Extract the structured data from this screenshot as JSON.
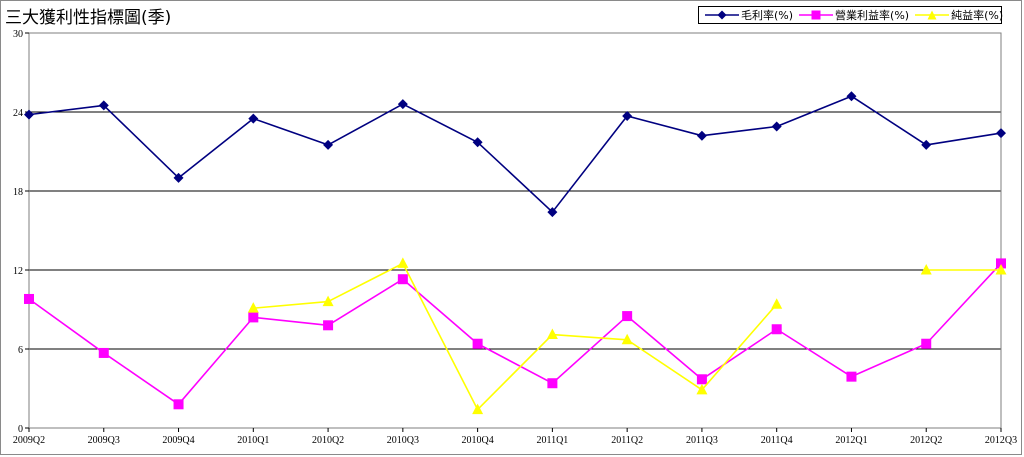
{
  "chart_data": {
    "type": "line",
    "title": "三大獲利性指標圖(季)",
    "xlabel": "",
    "ylabel": "",
    "categories": [
      "2009Q2",
      "2009Q3",
      "2009Q4",
      "2010Q1",
      "2010Q2",
      "2010Q3",
      "2010Q4",
      "2011Q1",
      "2011Q2",
      "2011Q3",
      "2011Q4",
      "2012Q1",
      "2012Q2",
      "2012Q3"
    ],
    "ylim": [
      0,
      30
    ],
    "yticks": [
      0,
      6,
      12,
      18,
      24,
      30
    ],
    "grid": "horizontal",
    "legend_position": "top-right",
    "series": [
      {
        "name": "毛利率(%)",
        "color": "#000080",
        "marker": "diamond",
        "values": [
          23.8,
          24.5,
          19.0,
          23.5,
          21.5,
          24.6,
          21.7,
          16.4,
          23.7,
          22.2,
          22.9,
          25.2,
          21.5,
          22.4
        ]
      },
      {
        "name": "營業利益率(%)",
        "color": "#ff00ff",
        "marker": "square",
        "values": [
          9.8,
          5.7,
          1.8,
          8.4,
          7.8,
          11.3,
          6.4,
          3.4,
          8.5,
          3.7,
          7.5,
          3.9,
          6.4,
          12.5
        ]
      },
      {
        "name": "純益率(%)",
        "color": "#ffff00",
        "marker": "triangle",
        "values": [
          null,
          null,
          null,
          9.1,
          9.6,
          12.5,
          1.4,
          7.1,
          6.7,
          2.9,
          9.4,
          null,
          12.0,
          12.0
        ]
      }
    ]
  }
}
